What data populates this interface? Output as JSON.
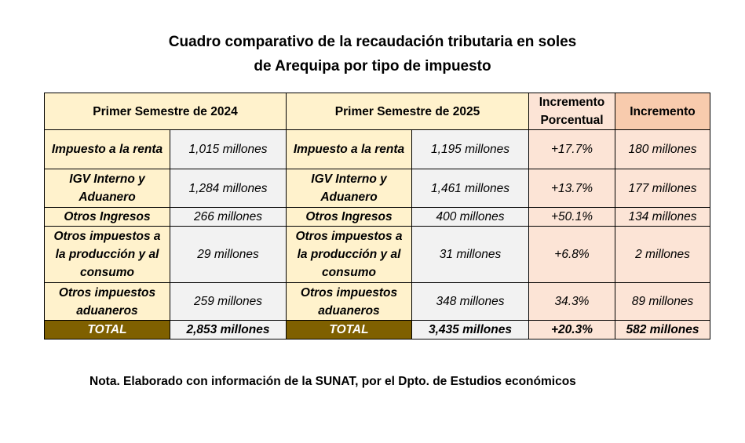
{
  "title_line1": "Cuadro comparativo de la recaudación tributaria en soles",
  "title_line2": "de Arequipa por tipo de impuesto",
  "headers": {
    "s2024": "Primer Semestre de 2024",
    "s2025": "Primer Semestre de 2025",
    "pct": "Incremento Porcentual",
    "inc": "Incremento"
  },
  "rows": [
    {
      "label": "Impuesto a la renta",
      "v2024": "1,015 millones",
      "v2025": "1,195 millones",
      "pct": "+17.7%",
      "inc": "180 millones"
    },
    {
      "label": "IGV Interno y Aduanero",
      "v2024": "1,284 millones",
      "v2025": "1,461 millones",
      "pct": "+13.7%",
      "inc": "177 millones"
    },
    {
      "label": "Otros Ingresos",
      "v2024": "266 millones",
      "v2025": "400 millones",
      "pct": "+50.1%",
      "inc": "134 millones"
    },
    {
      "label": "Otros impuestos a la producción y al consumo",
      "v2024": "29 millones",
      "v2025": "31 millones",
      "pct": "+6.8%",
      "inc": "2 millones"
    },
    {
      "label": "Otros impuestos aduaneros",
      "v2024": "259 millones",
      "v2025": "348 millones",
      "pct": "34.3%",
      "inc": "89 millones"
    }
  ],
  "total": {
    "label": "TOTAL",
    "v2024": "2,853 millones",
    "v2025": "3,435 millones",
    "pct": "+20.3%",
    "inc": "582 millones"
  },
  "note": "Nota. Elaborado con información de la SUNAT, por el Dpto. de Estudios económicos"
}
